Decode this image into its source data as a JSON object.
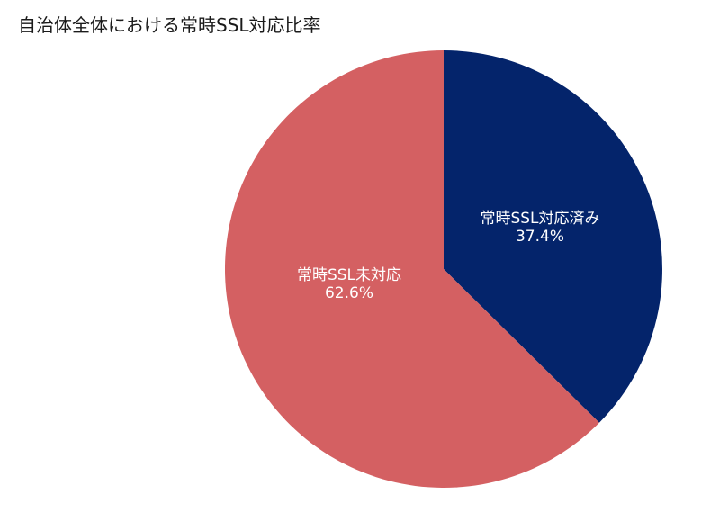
{
  "chart_data": {
    "type": "pie",
    "title": "自治体全体における常時SSL対応比率",
    "slices": [
      {
        "label": "常時SSL対応済み",
        "value": 37.4,
        "value_label": "37.4%",
        "color": "#04246b"
      },
      {
        "label": "常時SSL未対応",
        "value": 62.6,
        "value_label": "62.6%",
        "color": "#d46062"
      }
    ],
    "start": "12 o'clock",
    "direction": "clockwise"
  }
}
